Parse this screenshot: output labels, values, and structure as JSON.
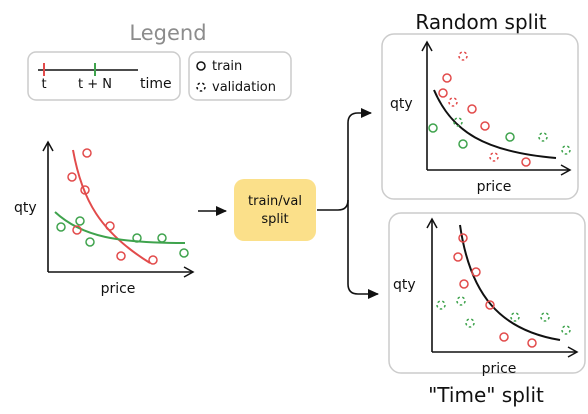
{
  "legend": {
    "title": "Legend",
    "time_axis": {
      "start_label": "t",
      "end_label": "t + N",
      "axis_label": "time"
    },
    "markers": {
      "train_label": "train",
      "validation_label": "validation"
    }
  },
  "main_plot": {
    "xlabel": "price",
    "ylabel": "qty",
    "points": [
      {
        "series": "train",
        "color": "red"
      },
      {
        "series": "train",
        "color": "red"
      },
      {
        "series": "train",
        "color": "red"
      },
      {
        "series": "train",
        "color": "red"
      },
      {
        "series": "train",
        "color": "red"
      },
      {
        "series": "train",
        "color": "red"
      },
      {
        "series": "train",
        "color": "red"
      },
      {
        "series": "train",
        "color": "green"
      },
      {
        "series": "train",
        "color": "green"
      },
      {
        "series": "train",
        "color": "green"
      },
      {
        "series": "train",
        "color": "green"
      },
      {
        "series": "train",
        "color": "green"
      },
      {
        "series": "train",
        "color": "green"
      }
    ]
  },
  "split_box": {
    "line1": "train/val",
    "line2": "split"
  },
  "random_split": {
    "title": "Random split",
    "xlabel": "price",
    "ylabel": "qty"
  },
  "time_split": {
    "title": "\"Time\" split",
    "xlabel": "price",
    "ylabel": "qty"
  },
  "colors": {
    "red": "#e24b4b",
    "green": "#3fa34d",
    "gray_title": "#8c8c8c",
    "box_border": "#cccccc",
    "split_fill": "#fbe08a",
    "ink": "#111111"
  }
}
